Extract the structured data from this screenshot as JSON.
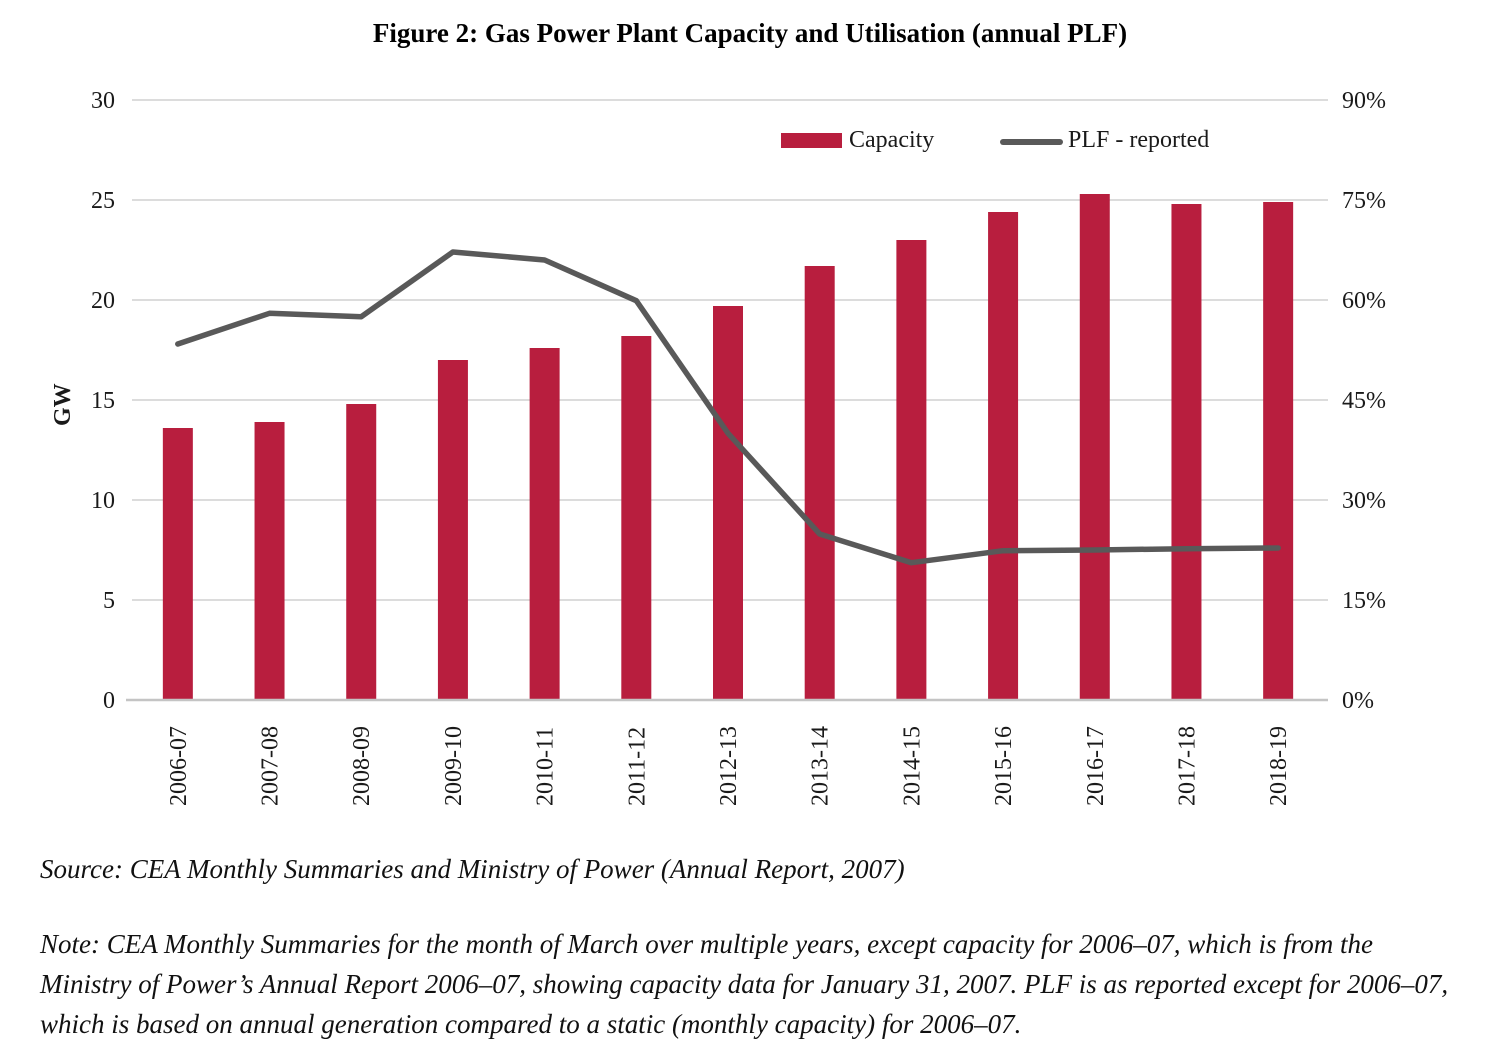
{
  "figure": {
    "title": "Figure 2: Gas Power Plant Capacity and Utilisation (annual PLF)",
    "source": "Source: CEA Monthly Summaries and Ministry of Power (Annual Report, 2007)",
    "note": "Note: CEA Monthly Summaries for the month of March over multiple years, except capacity for 2006–07, which is from the Ministry of Power’s Annual Report 2006–07, showing capacity data for January 31, 2007. PLF is as reported except for 2006–07, which is based on annual generation compared to a static (monthly capacity) for 2006–07."
  },
  "chart_data": {
    "type": "bar",
    "subtype": "bar+line combo, dual axis",
    "categories": [
      "2006-07",
      "2007-08",
      "2008-09",
      "2009-10",
      "2010-11",
      "2011-12",
      "2012-13",
      "2013-14",
      "2014-15",
      "2015-16",
      "2016-17",
      "2017-18",
      "2018-19"
    ],
    "series": [
      {
        "name": "Capacity",
        "type": "bar",
        "axis": "left",
        "unit": "GW",
        "color": "#b81e3e",
        "values": [
          13.6,
          13.9,
          14.8,
          17.0,
          17.6,
          18.2,
          19.7,
          21.7,
          23.0,
          24.4,
          25.3,
          24.8,
          24.9
        ]
      },
      {
        "name": "PLF - reported",
        "type": "line",
        "axis": "right",
        "unit": "%",
        "color": "#595959",
        "values": [
          53.4,
          58.0,
          57.5,
          67.2,
          66.0,
          59.9,
          40.0,
          24.9,
          20.6,
          22.4,
          22.5,
          22.7,
          22.8
        ]
      }
    ],
    "left_axis": {
      "label": "GW",
      "min": 0,
      "max": 30,
      "step": 5,
      "tick_labels": [
        "0",
        "5",
        "10",
        "15",
        "20",
        "25",
        "30"
      ]
    },
    "right_axis": {
      "label": "",
      "min": 0,
      "max": 90,
      "step": 15,
      "tick_labels": [
        "0%",
        "15%",
        "30%",
        "45%",
        "60%",
        "75%",
        "90%"
      ]
    },
    "legend": {
      "position": "top-right-inside",
      "entries": [
        "Capacity",
        "PLF - reported"
      ]
    },
    "grid": true,
    "colors": {
      "gridline": "#dcdcdc",
      "axis_line": "#c4c4c4",
      "text": "#1a1a1a"
    }
  }
}
